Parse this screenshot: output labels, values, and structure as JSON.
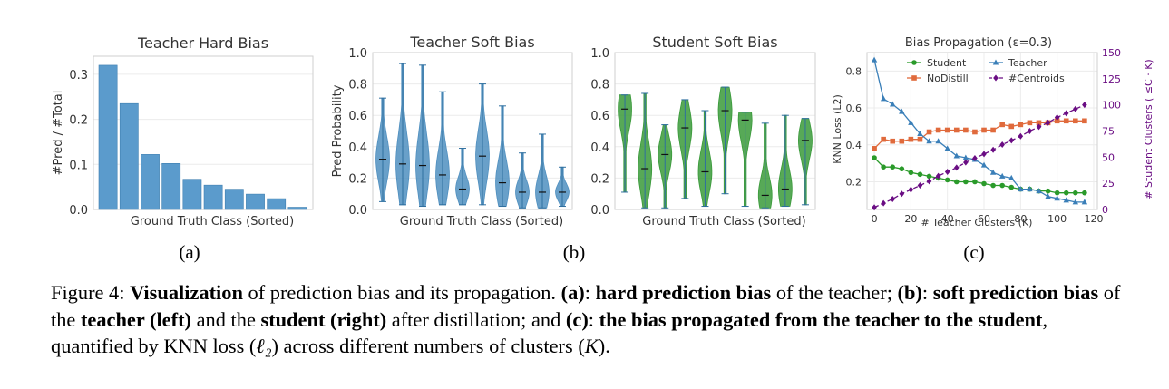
{
  "figure": {
    "sublabels": [
      "(a)",
      "(b)",
      "(c)"
    ]
  },
  "caption": {
    "fig_label": "Figure 4:",
    "p1": "Visualization",
    "p2": " of prediction bias and its propagation. ",
    "p3": "(a)",
    "p4": ": ",
    "p5": "hard prediction bias",
    "p6": " of the teacher; ",
    "p7": "(b)",
    "p8": ": ",
    "p9": "soft prediction bias",
    "p10": " of the ",
    "p11": "teacher (left)",
    "p12": " and the ",
    "p13": "student (right)",
    "p14": " after distillation; and ",
    "p15": "(c)",
    "p16": ": ",
    "p17": "the bias propagated from the teacher to the student",
    "p18": ", quantified by KNN loss (",
    "p19": "ℓ₂",
    "p20": ") across different numbers of clusters (",
    "p21": "K",
    "p22": ")."
  },
  "chart_data": [
    {
      "id": "a",
      "type": "bar",
      "title": "Teacher Hard Bias",
      "xlabel": "Ground Truth Class (Sorted)",
      "ylabel": "#Pred / #Total",
      "ylim": [
        0,
        0.34
      ],
      "yticks": [
        0.0,
        0.1,
        0.2,
        0.3
      ],
      "ytick_labels": [
        "0.0",
        "0.1",
        "0.2",
        "0.3"
      ],
      "values": [
        0.32,
        0.235,
        0.122,
        0.102,
        0.067,
        0.054,
        0.045,
        0.034,
        0.024,
        0.005
      ],
      "color": "#5b9bcc"
    },
    {
      "id": "b-left",
      "type": "violin",
      "title": "Teacher Soft Bias",
      "xlabel": "Ground Truth Class (Sorted)",
      "ylabel": "Pred Probability",
      "ylim": [
        0,
        1.0
      ],
      "yticks": [
        0.0,
        0.2,
        0.4,
        0.6,
        0.8,
        1.0
      ],
      "ytick_labels": [
        "0.0",
        "0.2",
        "0.4",
        "0.6",
        "0.8",
        "1.0"
      ],
      "color": "#4f8fbf",
      "violins": [
        {
          "min": 0.05,
          "max": 0.71,
          "median": 0.32
        },
        {
          "min": 0.03,
          "max": 0.93,
          "median": 0.29
        },
        {
          "min": 0.02,
          "max": 0.92,
          "median": 0.28
        },
        {
          "min": 0.03,
          "max": 0.75,
          "median": 0.22
        },
        {
          "min": 0.03,
          "max": 0.39,
          "median": 0.13
        },
        {
          "min": 0.03,
          "max": 0.8,
          "median": 0.34
        },
        {
          "min": 0.02,
          "max": 0.66,
          "median": 0.17
        },
        {
          "min": 0.01,
          "max": 0.36,
          "median": 0.11
        },
        {
          "min": 0.01,
          "max": 0.48,
          "median": 0.11
        },
        {
          "min": 0.02,
          "max": 0.27,
          "median": 0.11
        }
      ]
    },
    {
      "id": "b-right",
      "type": "violin",
      "title": "Student Soft Bias",
      "xlabel": "Ground Truth Class (Sorted)",
      "ylabel": "",
      "ylim": [
        0,
        1.0
      ],
      "yticks": [
        0.0,
        0.2,
        0.4,
        0.6,
        0.8,
        1.0
      ],
      "ytick_labels": [
        "0.0",
        "0.2",
        "0.4",
        "0.6",
        "0.8",
        "1.0"
      ],
      "color": "#3a9a3a",
      "violins": [
        {
          "min": 0.11,
          "max": 0.73,
          "median": 0.64
        },
        {
          "min": 0.01,
          "max": 0.74,
          "median": 0.26
        },
        {
          "min": 0.01,
          "max": 0.54,
          "median": 0.35
        },
        {
          "min": 0.07,
          "max": 0.7,
          "median": 0.52
        },
        {
          "min": 0.02,
          "max": 0.63,
          "median": 0.24
        },
        {
          "min": 0.1,
          "max": 0.78,
          "median": 0.63
        },
        {
          "min": 0.02,
          "max": 0.62,
          "median": 0.57
        },
        {
          "min": 0.01,
          "max": 0.55,
          "median": 0.09
        },
        {
          "min": 0.02,
          "max": 0.6,
          "median": 0.13
        },
        {
          "min": 0.03,
          "max": 0.58,
          "median": 0.44
        }
      ]
    },
    {
      "id": "c",
      "type": "line",
      "title": "Bias Propagation (ε=0.3)",
      "xlabel": "# Teacher Clusters (K)",
      "ylabel": "KNN Loss (L2)",
      "ylabel_right": "# Student Clusters ( ≤C · K)",
      "xlim": [
        -4,
        122
      ],
      "ylim": [
        0.05,
        0.9
      ],
      "ylim_right": [
        0,
        150
      ],
      "xticks": [
        0,
        20,
        40,
        60,
        80,
        100,
        120
      ],
      "yticks": [
        0.2,
        0.4,
        0.6,
        0.8
      ],
      "ytick_labels": [
        "0.2",
        "0.4",
        "0.6",
        "0.8"
      ],
      "yticks_right": [
        0,
        25,
        50,
        75,
        100,
        125,
        150
      ],
      "x": [
        0,
        5,
        10,
        15,
        20,
        25,
        30,
        35,
        40,
        45,
        50,
        55,
        60,
        65,
        70,
        75,
        80,
        85,
        90,
        95,
        100,
        105,
        110,
        115
      ],
      "series": [
        {
          "name": "Student",
          "axis": "left",
          "color": "#2a9a2a",
          "marker": "circle",
          "values": [
            0.33,
            0.28,
            0.28,
            0.27,
            0.25,
            0.24,
            0.23,
            0.22,
            0.21,
            0.2,
            0.2,
            0.2,
            0.19,
            0.18,
            0.18,
            0.17,
            0.16,
            0.16,
            0.15,
            0.15,
            0.14,
            0.14,
            0.14,
            0.14
          ]
        },
        {
          "name": "NoDistill",
          "axis": "left",
          "color": "#e06a3c",
          "marker": "square",
          "values": [
            0.38,
            0.43,
            0.42,
            0.42,
            0.43,
            0.43,
            0.47,
            0.48,
            0.48,
            0.48,
            0.48,
            0.47,
            0.48,
            0.48,
            0.51,
            0.5,
            0.51,
            0.52,
            0.52,
            0.52,
            0.53,
            0.53,
            0.53,
            0.53
          ]
        },
        {
          "name": "Teacher",
          "axis": "left",
          "color": "#3a7fb8",
          "marker": "triangle",
          "values": [
            0.86,
            0.65,
            0.62,
            0.58,
            0.52,
            0.46,
            0.42,
            0.42,
            0.38,
            0.34,
            0.33,
            0.32,
            0.29,
            0.25,
            0.23,
            0.22,
            0.16,
            0.16,
            0.15,
            0.12,
            0.11,
            0.1,
            0.09,
            0.09
          ]
        },
        {
          "name": "#Centroids",
          "axis": "right",
          "color": "#6a0d83",
          "marker": "diamond",
          "dashed": true,
          "values": [
            2,
            6,
            10,
            15,
            19,
            23,
            27,
            32,
            36,
            40,
            45,
            49,
            53,
            57,
            62,
            66,
            70,
            75,
            79,
            83,
            88,
            92,
            96,
            100
          ]
        }
      ],
      "legend_position": "top-right"
    }
  ]
}
